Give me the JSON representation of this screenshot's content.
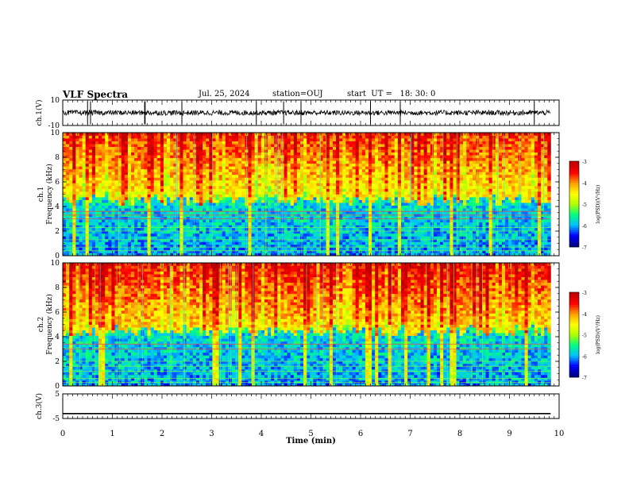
{
  "header": {
    "title": "VLF Spectra",
    "date": "Jul. 25, 2024",
    "station": "station=OUJ",
    "start": "start  UT =   18: 30: 0"
  },
  "chart_data": {
    "type": "heatmap",
    "title": "VLF Spectra",
    "xlabel": "Time  (min)",
    "xlim": [
      0,
      10
    ],
    "xticks": [
      "0",
      "1",
      "2",
      "3",
      "4",
      "5",
      "6",
      "7",
      "8",
      "9",
      "10"
    ],
    "grid": false,
    "panels": [
      {
        "name": "ch1-waveform",
        "type": "line",
        "ylabel": "ch.1(V)",
        "ylim": [
          -10,
          10
        ],
        "yticks": [
          "10",
          "-10"
        ],
        "description_values": {
          "baseline_v": 0,
          "spike_times_min": [
            0.5,
            0.56,
            1.65,
            1.66,
            2.4,
            3.9,
            4.45,
            4.8,
            6.2,
            6.8,
            9.5
          ]
        }
      },
      {
        "name": "ch1-spectrogram",
        "type": "heatmap",
        "ylabel": "ch.1\nFrequency (kHz)",
        "ylim": [
          0,
          10
        ],
        "yticks": [
          "0",
          "2",
          "4",
          "6",
          "8",
          "10"
        ],
        "colorbar": {
          "label": "log(PSD)(V²/Hz)",
          "range": [
            -7,
            -3
          ],
          "ticks": [
            "-3",
            "-4",
            "-5",
            "-6",
            "-7"
          ]
        },
        "data_extent_min": [
          0,
          9.83
        ],
        "low_band_top_khz": 4.5,
        "tones_khz": [
          0.4,
          0.7,
          1.3,
          2.0,
          2.3,
          3.0,
          3.3,
          3.6
        ]
      },
      {
        "name": "ch2-spectrogram",
        "type": "heatmap",
        "ylabel": "ch.2\nFrequency (kHz)",
        "ylim": [
          0,
          10
        ],
        "yticks": [
          "0",
          "2",
          "4",
          "6",
          "8",
          "10"
        ],
        "colorbar": {
          "label": "log(PSD)(V²/Hz)",
          "range": [
            -7,
            -3
          ],
          "ticks": [
            "-3",
            "-4",
            "-5",
            "-6",
            "-7"
          ]
        },
        "data_extent_min": [
          0,
          9.83
        ],
        "low_band_top_khz": 4.5,
        "tones_khz": [
          0.3,
          0.6,
          1.2,
          1.6,
          2.0,
          3.0,
          3.4
        ]
      },
      {
        "name": "ch3-waveform",
        "type": "line",
        "ylabel": "ch.3(V)",
        "ylim": [
          -5,
          5
        ],
        "yticks": [
          "5",
          "-5"
        ],
        "description_values": {
          "level_v": -3
        }
      }
    ],
    "colors": {
      "scale": [
        "#000080",
        "#0000ff",
        "#00c0ff",
        "#00ff80",
        "#b0ff00",
        "#ffff00",
        "#ffa000",
        "#ff0000",
        "#c00000"
      ]
    }
  }
}
